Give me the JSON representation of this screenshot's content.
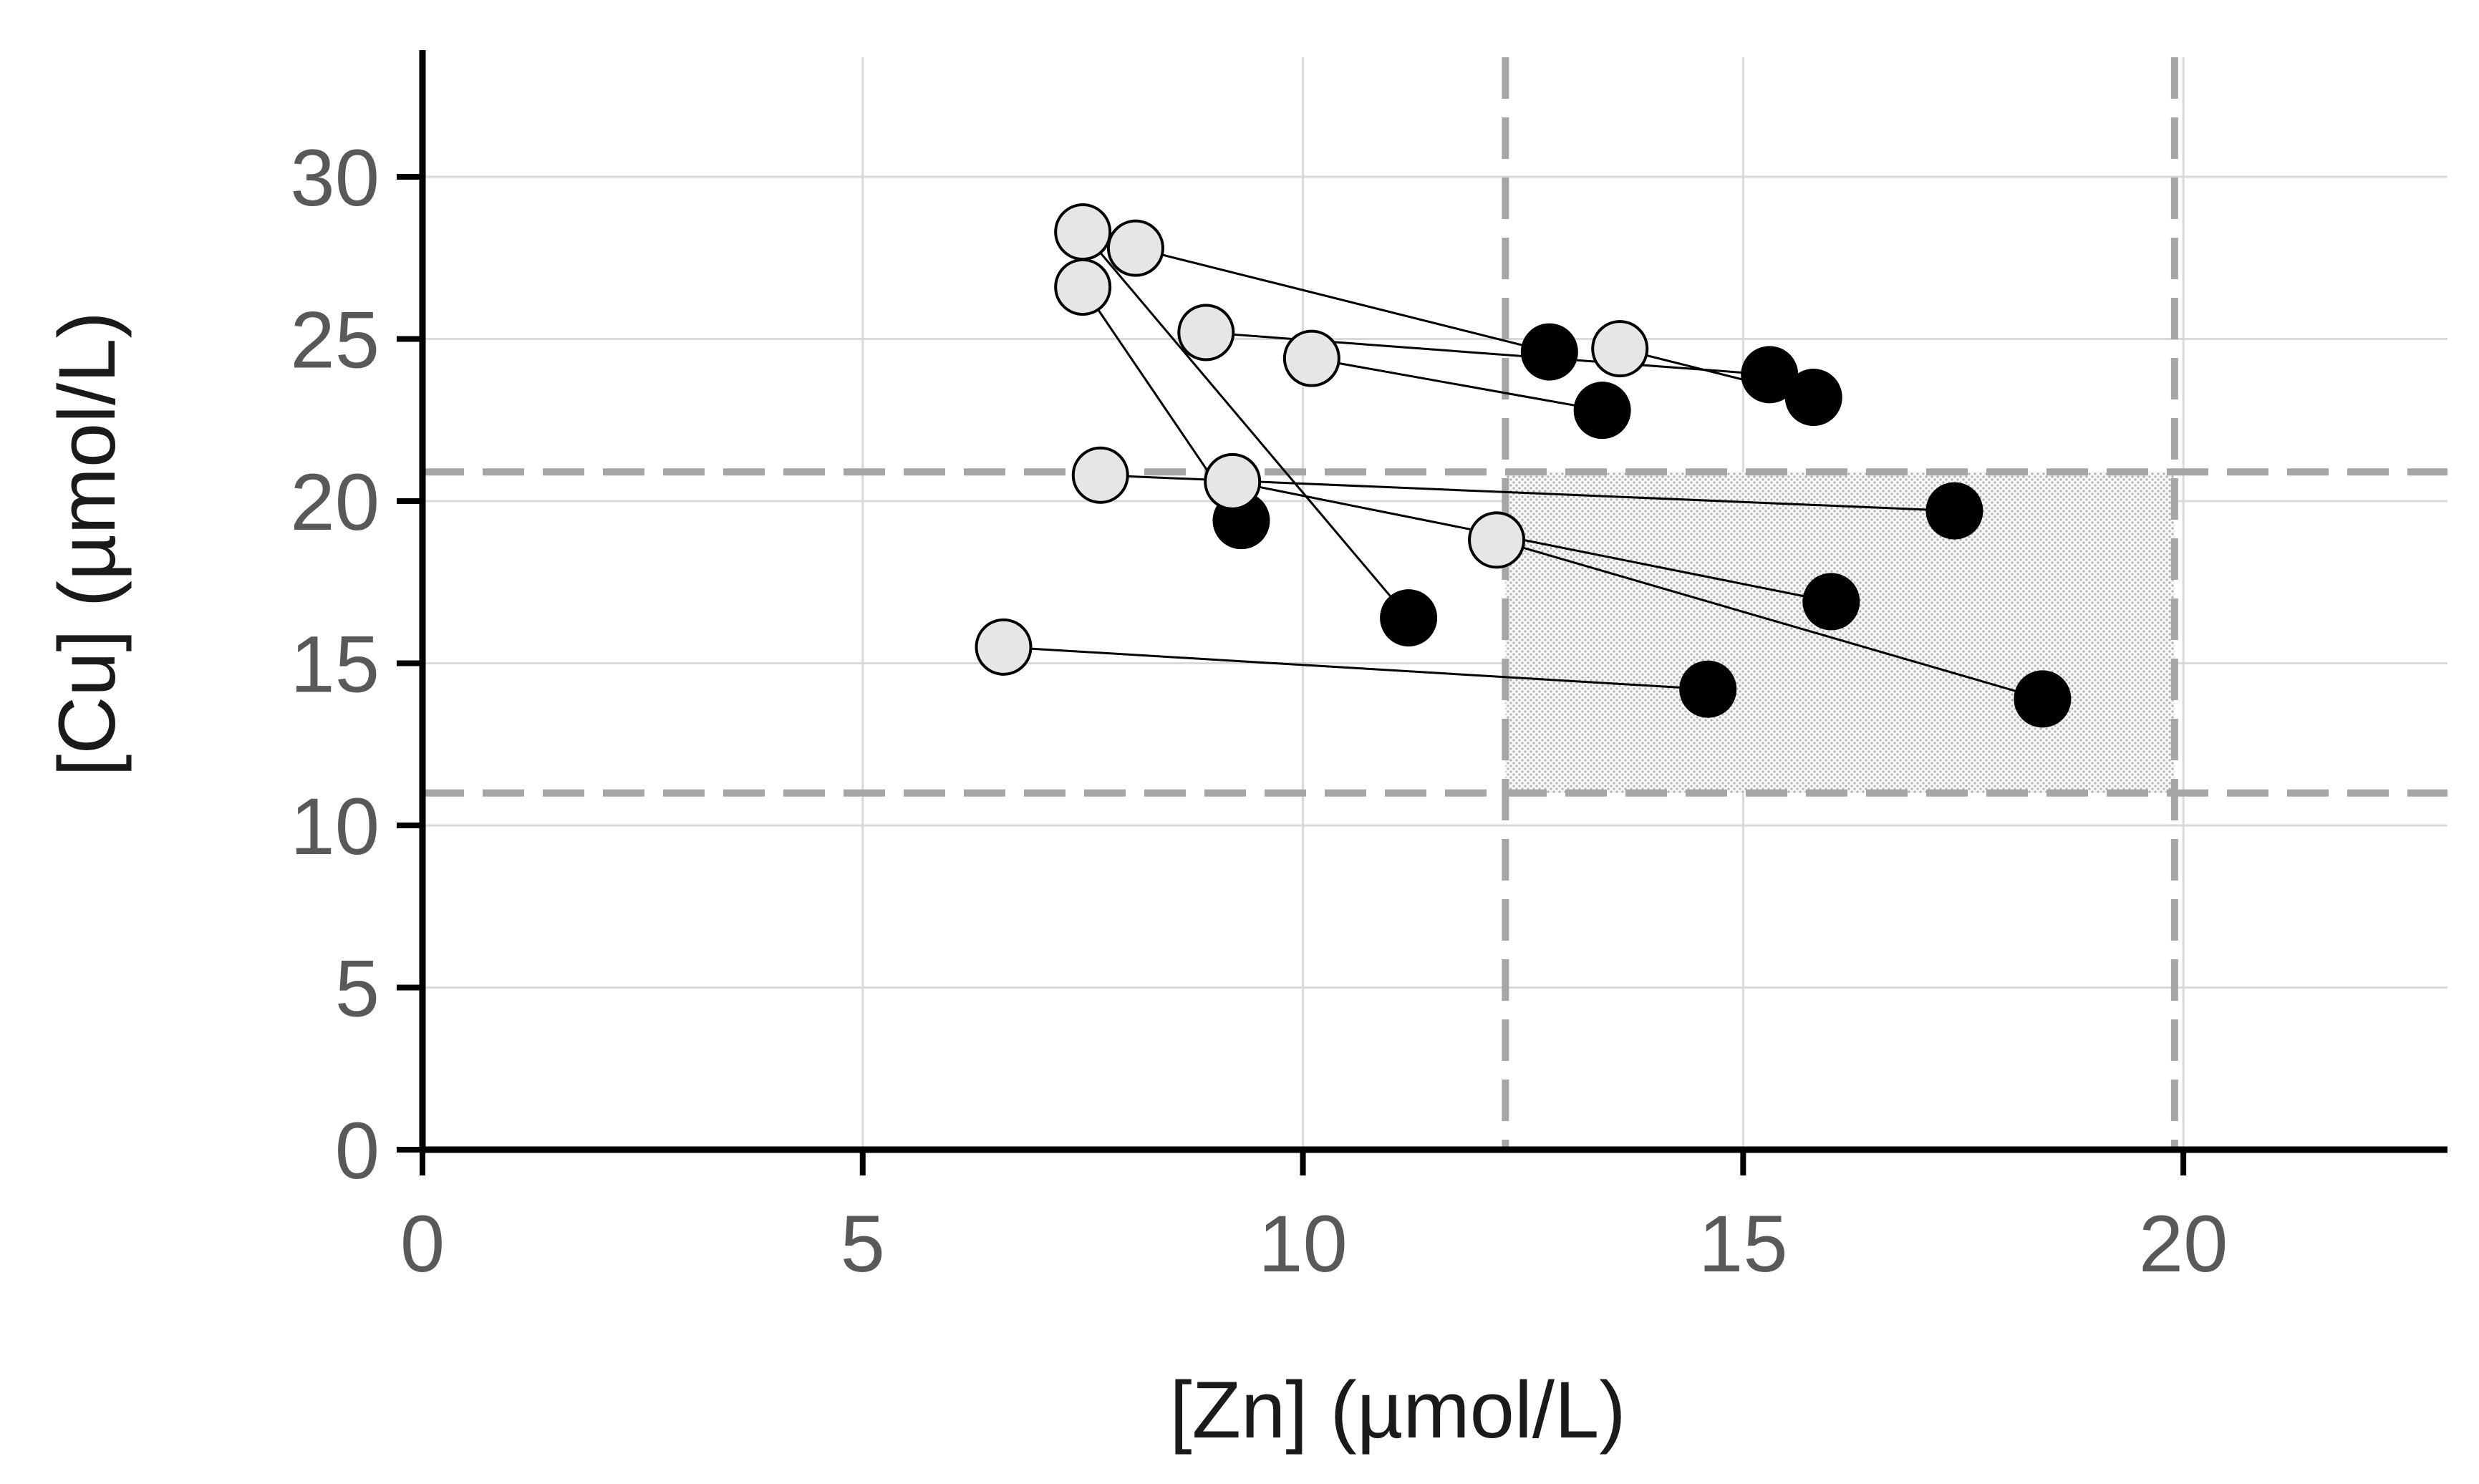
{
  "chart_data": {
    "type": "scatter",
    "title": "",
    "xlabel": "[Zn]  (µmol/L)",
    "ylabel": "[Cu]  (µmol/L)",
    "xlim": [
      0,
      23
    ],
    "ylim": [
      0,
      33
    ],
    "x_ticks": [
      0,
      5,
      10,
      15,
      20
    ],
    "y_ticks": [
      0,
      5,
      10,
      15,
      20,
      25,
      30
    ],
    "grid": true,
    "reference_range": {
      "zn": [
        12.3,
        19.9
      ],
      "cu": [
        11.0,
        20.9
      ]
    },
    "series": [
      {
        "name": "open",
        "color": "#e6e6e6"
      },
      {
        "name": "filled",
        "color": "#000000"
      }
    ],
    "pairs": [
      {
        "open": {
          "x": 7.5,
          "y": 28.3
        },
        "filled": {
          "x": 11.2,
          "y": 16.4
        }
      },
      {
        "open": {
          "x": 8.1,
          "y": 27.8
        },
        "filled": {
          "x": 12.8,
          "y": 24.6
        }
      },
      {
        "open": {
          "x": 7.5,
          "y": 26.6
        },
        "filled": {
          "x": 9.3,
          "y": 19.4
        }
      },
      {
        "open": {
          "x": 8.9,
          "y": 25.2
        },
        "filled": {
          "x": 15.3,
          "y": 23.9
        }
      },
      {
        "open": {
          "x": 10.1,
          "y": 24.4
        },
        "filled": {
          "x": 13.4,
          "y": 22.8
        }
      },
      {
        "open": {
          "x": 13.6,
          "y": 24.7
        },
        "filled": {
          "x": 15.8,
          "y": 23.2
        }
      },
      {
        "open": {
          "x": 7.7,
          "y": 20.8
        },
        "filled": {
          "x": 17.4,
          "y": 19.7
        }
      },
      {
        "open": {
          "x": 9.2,
          "y": 20.6
        },
        "filled": {
          "x": 16.0,
          "y": 16.9
        }
      },
      {
        "open": {
          "x": 12.2,
          "y": 18.8
        },
        "filled": {
          "x": 18.4,
          "y": 13.9
        }
      },
      {
        "open": {
          "x": 6.6,
          "y": 15.5
        },
        "filled": {
          "x": 14.6,
          "y": 14.2
        }
      }
    ]
  }
}
